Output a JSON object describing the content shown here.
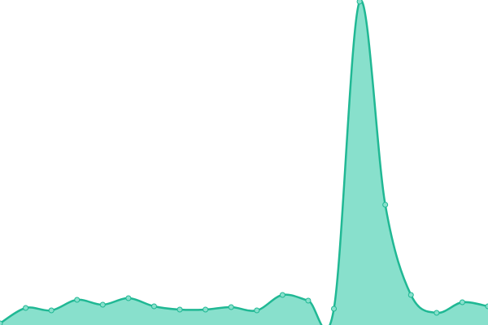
{
  "chart_data": {
    "type": "area",
    "values": [
      2,
      21,
      18,
      31,
      25,
      33,
      23,
      19,
      19,
      22,
      18,
      37,
      30,
      20,
      398,
      148,
      37,
      15,
      28,
      23
    ],
    "color": "#20b894",
    "fill_color": "#88e0cc"
  }
}
